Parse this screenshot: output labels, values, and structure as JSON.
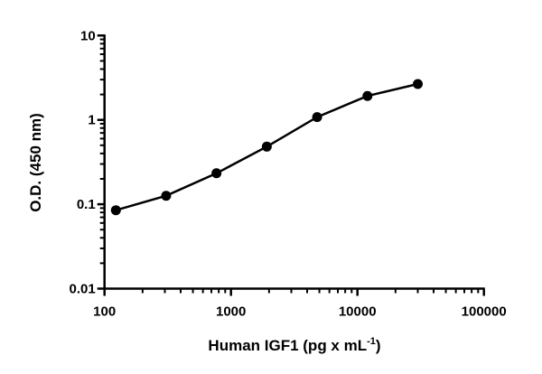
{
  "chart_data": {
    "type": "line",
    "title": "",
    "xlabel": "Human IGF1 (pg x mL",
    "xlabel_superscript": "-1",
    "xlabel_suffix": ")",
    "ylabel": "O.D. (450 nm)",
    "x_scale": "log",
    "y_scale": "log",
    "xlim": [
      100,
      100000
    ],
    "ylim": [
      0.01,
      10
    ],
    "x_ticks": [
      "100",
      "1000",
      "10000",
      "100000"
    ],
    "y_ticks": [
      "0.01",
      "0.1",
      "1",
      "10"
    ],
    "grid": false,
    "legend": "none",
    "marker": "filled-circle",
    "line_color": "#000000",
    "series": [
      {
        "x": [
          123,
          307,
          768,
          1920,
          4800,
          12000,
          30000
        ],
        "y": [
          0.085,
          0.126,
          0.233,
          0.482,
          1.08,
          1.92,
          2.66
        ]
      }
    ]
  }
}
